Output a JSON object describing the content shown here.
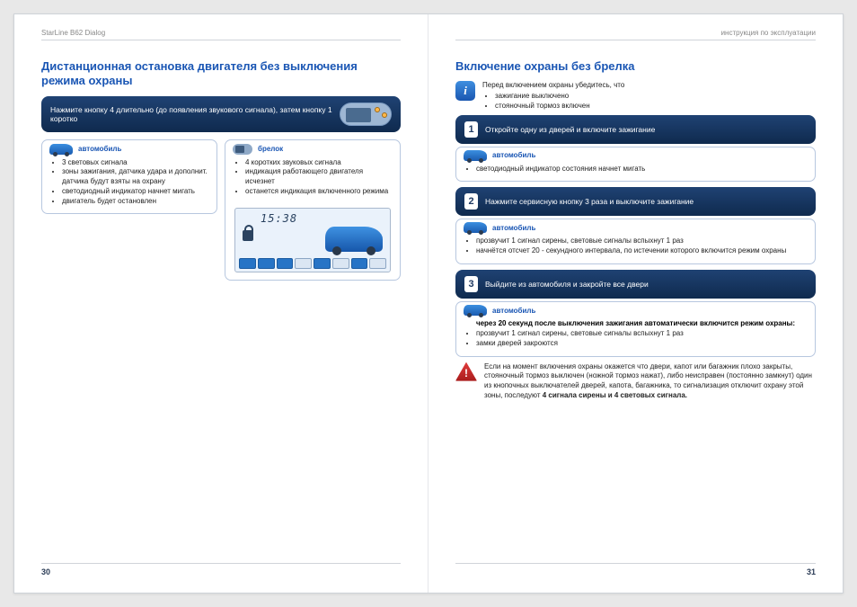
{
  "doc": {
    "product": "StarLine B62 Dialog",
    "type_label": "инструкция по эксплуатации"
  },
  "colors": {
    "heading": "#1a56b4",
    "bar_bg_top": "#1f4273",
    "bar_bg_bot": "#0f2a4e",
    "card_border": "#b7c7df",
    "info_icon": "#1a56b0",
    "warn_icon": "#a81c1c"
  },
  "left": {
    "page_number": "30",
    "title": "Дистанционная остановка двигателя без выключения режима охраны",
    "bar_text": "Нажмите кнопку 4 длительно (до появления звукового сигнала), затем кнопку 1 коротко",
    "col_car": {
      "label": "автомобиль",
      "items": [
        "3 световых сигнала",
        "зоны зажигания, датчика удара и дополнит. датчика будут взяты на охрану",
        "светодиодный индикатор начнет мигать",
        "двигатель будет остановлен"
      ]
    },
    "col_remote": {
      "label": "брелок",
      "items": [
        "4 коротких звуковых сигнала",
        "индикация работающего двигателя  исчезнет",
        "останется индикация включенного режима"
      ],
      "lcd": {
        "clock": "15:38",
        "bottom_flags": [
          "on",
          "on",
          "on",
          "off",
          "on",
          "off",
          "on",
          "off"
        ]
      }
    }
  },
  "right": {
    "page_number": "31",
    "title": "Включение охраны без брелка",
    "info_box": {
      "lead": "Перед включением охраны убедитесь, что",
      "items": [
        "зажигание выключено",
        "стояночный тормоз включен"
      ]
    },
    "steps": [
      {
        "num": "1",
        "text": "Откройте одну из дверей и включите зажигание",
        "card": {
          "label": "автомобиль",
          "items": [
            "светодиодный индикатор состояния начнет мигать"
          ]
        }
      },
      {
        "num": "2",
        "text": "Нажмите сервисную кнопку 3 раза и выключите зажигание",
        "card": {
          "label": "автомобиль",
          "items": [
            "прозвучит 1 сигнал сирены, световые сигналы вспыхнут 1 раз",
            "начнётся отсчет 20 - секундного интервала, по истечении которого включится режим охраны"
          ]
        }
      },
      {
        "num": "3",
        "text": "Выйдите из автомобиля и закройте все двери",
        "card": {
          "label": "автомобиль",
          "bold_note": "через 20 секунд после выключения зажигания автоматически включится режим охраны:",
          "items": [
            "прозвучит 1 сигнал сирены, световые сигналы вспыхнут 1 раз",
            "замки дверей закроются"
          ]
        }
      }
    ],
    "warning": {
      "text_pre": "Если на момент включения охраны окажется что  двери, капот или багажник плохо закрыты, стояночный тормоз выключен (ножной тормоз нажат), либо неисправен (постоянно замкнут) один из кнопочных выключателей дверей, капота, багажника, то сигнализация отключит охрану этой зоны, последуют ",
      "text_bold": "4 сигнала сирены и 4 световых сигнала."
    }
  }
}
